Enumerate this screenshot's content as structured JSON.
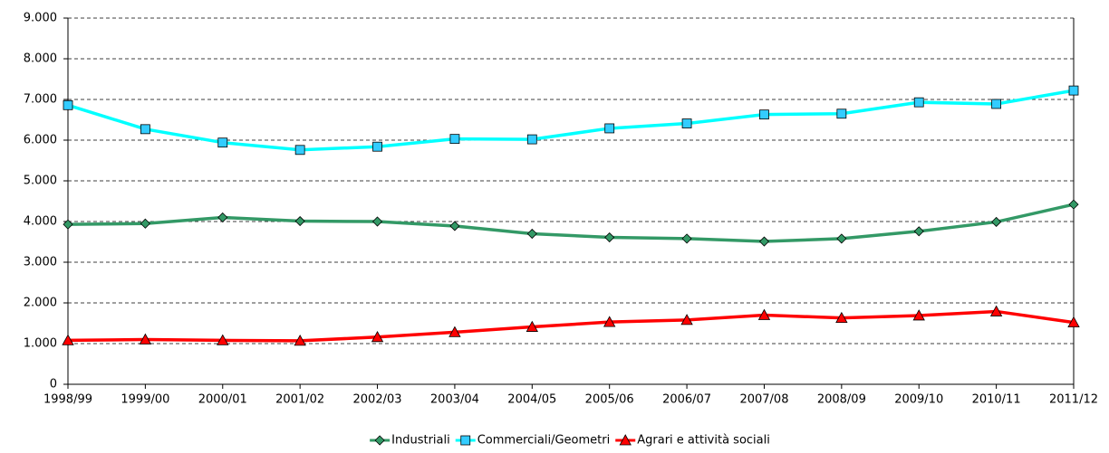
{
  "chart_data": {
    "type": "line",
    "categories": [
      "1998/99",
      "1999/00",
      "2000/01",
      "2001/02",
      "2002/03",
      "2003/04",
      "2004/05",
      "2005/06",
      "2006/07",
      "2007/08",
      "2008/09",
      "2009/10",
      "2010/11",
      "2011/12"
    ],
    "series": [
      {
        "name": "Industriali",
        "color": "#339966",
        "marker": "diamond",
        "values": [
          3930,
          3950,
          4100,
          4010,
          4000,
          3890,
          3700,
          3610,
          3580,
          3510,
          3580,
          3760,
          3990,
          4420
        ]
      },
      {
        "name": "Commerciali/Geometri",
        "color": "#00ffff",
        "marker": "square",
        "values": [
          6860,
          6270,
          5940,
          5760,
          5840,
          6030,
          6020,
          6290,
          6410,
          6630,
          6650,
          6930,
          6890,
          7220
        ]
      },
      {
        "name": "Agrari e attività sociali",
        "color": "#ff0000",
        "marker": "triangle",
        "values": [
          1080,
          1100,
          1080,
          1070,
          1160,
          1280,
          1410,
          1530,
          1580,
          1700,
          1630,
          1690,
          1790,
          1520
        ]
      }
    ],
    "ylim": [
      0,
      9000
    ],
    "yticks": [
      0,
      {
        "value": 1000,
        "label": "1.000"
      },
      {
        "value": 2000,
        "label": "2.000"
      },
      {
        "value": 3000,
        "label": "3.000"
      },
      {
        "value": 4000,
        "label": "4.000"
      },
      {
        "value": 5000,
        "label": "5.000"
      },
      {
        "value": 6000,
        "label": "6.000"
      },
      {
        "value": 7000,
        "label": "7.000"
      },
      {
        "value": 8000,
        "label": "8.000"
      },
      {
        "value": 9000,
        "label": "9.000"
      }
    ],
    "grid": true,
    "legend": "bottom"
  }
}
